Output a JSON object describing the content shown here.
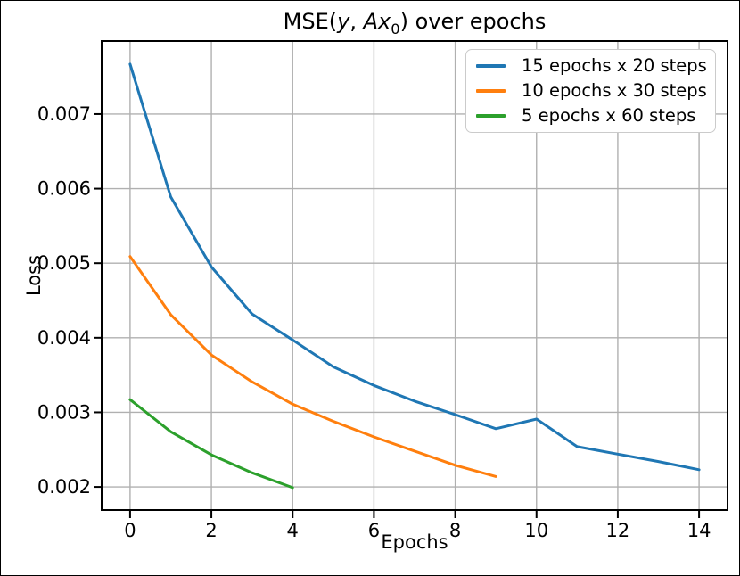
{
  "figure": {
    "title_parts": {
      "prefix": "MSE(",
      "math_y": "y",
      "separator": ", ",
      "math_Ax": "Ax",
      "subscript": "0",
      "suffix": ") over epochs"
    }
  },
  "chart_data": {
    "type": "line",
    "title": "MSE(y, Ax₀) over epochs",
    "xlabel": "Epochs",
    "ylabel": "Loss",
    "xlim": [
      -0.7,
      14.7
    ],
    "ylim": [
      0.00169,
      0.00798
    ],
    "x_ticks": [
      0,
      2,
      4,
      6,
      8,
      10,
      12,
      14
    ],
    "y_ticks": [
      0.002,
      0.003,
      0.004,
      0.005,
      0.006,
      0.007
    ],
    "y_tick_decimals": 3,
    "grid": true,
    "legend_position": "upper right",
    "series": [
      {
        "name": "15 epochs x 20 steps",
        "color": "#1f77b4",
        "x": [
          0,
          1,
          2,
          3,
          4,
          5,
          6,
          7,
          8,
          9,
          10,
          11,
          12,
          13,
          14
        ],
        "values": [
          0.00767,
          0.00589,
          0.00495,
          0.00432,
          0.00397,
          0.00361,
          0.00336,
          0.00315,
          0.00297,
          0.00278,
          0.00291,
          0.00254,
          0.00244,
          0.00234,
          0.00223
        ]
      },
      {
        "name": "10 epochs x 30 steps",
        "color": "#ff7f0e",
        "x": [
          0,
          1,
          2,
          3,
          4,
          5,
          6,
          7,
          8,
          9
        ],
        "values": [
          0.00509,
          0.00431,
          0.00377,
          0.00341,
          0.00311,
          0.00288,
          0.00267,
          0.00248,
          0.00229,
          0.00214
        ]
      },
      {
        "name": "5 epochs x 60 steps",
        "color": "#2ca02c",
        "x": [
          0,
          1,
          2,
          3,
          4
        ],
        "values": [
          0.00317,
          0.00274,
          0.00243,
          0.00219,
          0.00199
        ]
      }
    ],
    "colors": {
      "grid": "#b0b0b0",
      "spine": "#000000",
      "background": "#ffffff",
      "legend_border": "#cbcbcb"
    }
  }
}
